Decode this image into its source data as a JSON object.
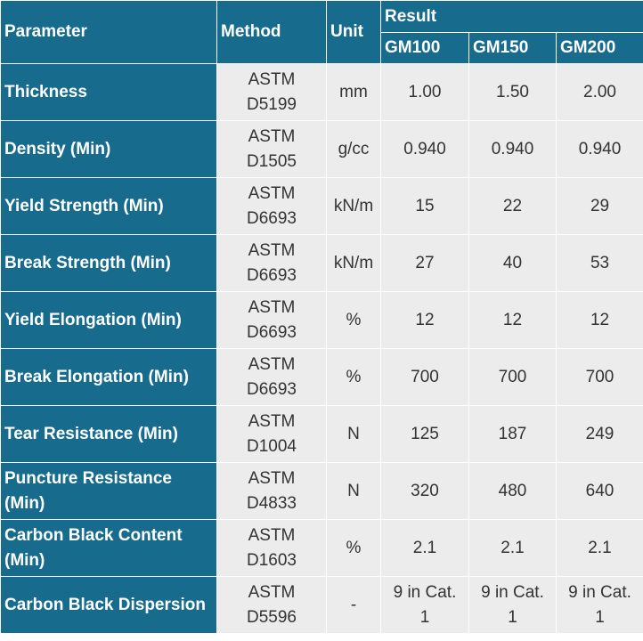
{
  "header": {
    "parameter": "Parameter",
    "method": "Method",
    "unit": "Unit",
    "result": "Result",
    "grades": [
      "GM100",
      "GM150",
      "GM200"
    ]
  },
  "rows": [
    [
      "Thickness",
      "ASTM D5199",
      "mm",
      "1.00",
      "1.50",
      "2.00"
    ],
    [
      "Density (Min)",
      "ASTM D1505",
      "g/cc",
      "0.940",
      "0.940",
      "0.940"
    ],
    [
      "Yield Strength (Min)",
      "ASTM D6693",
      "kN/m",
      "15",
      "22",
      "29"
    ],
    [
      "Break Strength (Min)",
      "ASTM D6693",
      "kN/m",
      "27",
      "40",
      "53"
    ],
    [
      "Yield Elongation (Min)",
      "ASTM D6693",
      "%",
      "12",
      "12",
      "12"
    ],
    [
      "Break Elongation (Min)",
      "ASTM D6693",
      "%",
      "700",
      "700",
      "700"
    ],
    [
      "Tear Resistance (Min)",
      "ASTM D1004",
      "N",
      "125",
      "187",
      "249"
    ],
    [
      "Puncture Resistance (Min)",
      "ASTM D4833",
      "N",
      "320",
      "480",
      "640"
    ],
    [
      "Carbon Black Content (Min)",
      "ASTM D1603",
      "%",
      "2.1",
      "2.1",
      "2.1"
    ],
    [
      "Carbon Black Dispersion",
      "ASTM D5596",
      "-",
      "9 in Cat. 1",
      "9 in Cat. 1",
      "9 in Cat. 1"
    ]
  ]
}
